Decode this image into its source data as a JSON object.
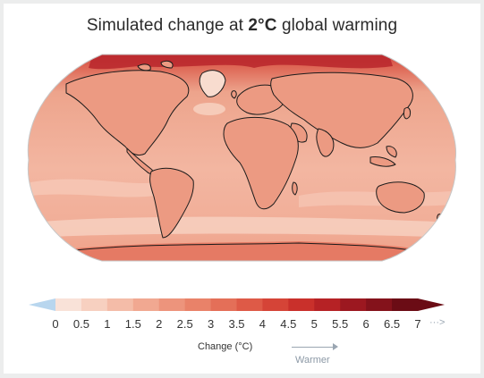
{
  "title": {
    "prefix": "Simulated change at ",
    "emphasis": "2°C",
    "suffix": " global warming"
  },
  "colorbar": {
    "ticks": [
      "0",
      "0.5",
      "1",
      "1.5",
      "2",
      "2.5",
      "3",
      "3.5",
      "4",
      "4.5",
      "5",
      "5.5",
      "6",
      "6.5",
      "7"
    ],
    "colors": [
      "#f9e2d8",
      "#f7d0c0",
      "#f4bca8",
      "#f1a891",
      "#ed947c",
      "#e98269",
      "#e46f58",
      "#de5a47",
      "#d54437",
      "#c9302b",
      "#b62225",
      "#9c1820",
      "#84121b",
      "#6b0c15"
    ],
    "below_color": "#b8d6ee",
    "label": "Change (°C)",
    "direction_label": "Warmer",
    "continuation": "···>"
  },
  "map": {
    "projection": "Robinson",
    "ocean_base_color": "#f2b19c",
    "land_color": "#eda48c",
    "arctic_color": "#c8393a",
    "greenland_color": "#f7d4c5"
  }
}
